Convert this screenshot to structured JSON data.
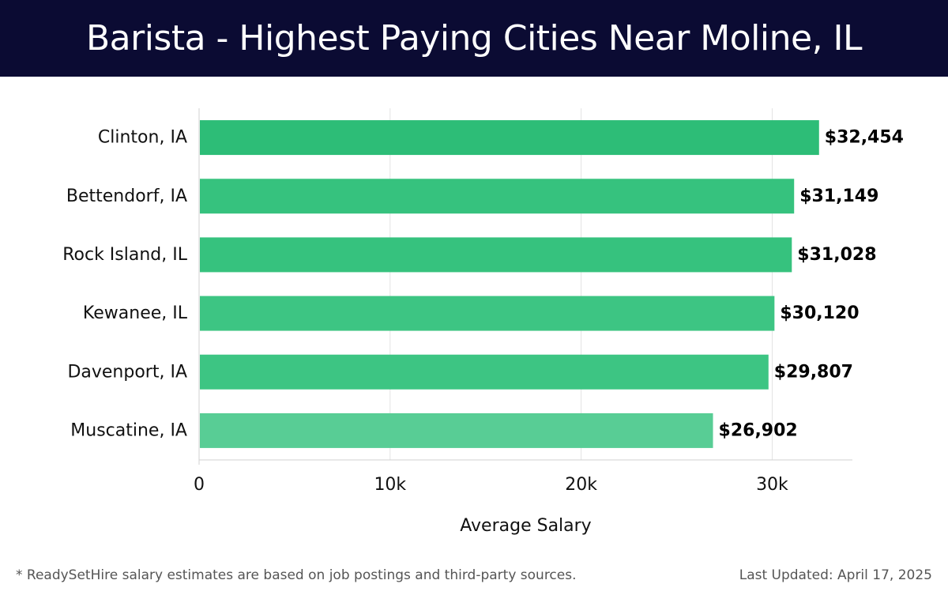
{
  "header": {
    "title": "Barista - Highest Paying Cities Near Moline, IL"
  },
  "chart_data": {
    "type": "bar",
    "orientation": "horizontal",
    "categories": [
      "Clinton, IA",
      "Bettendorf, IA",
      "Rock Island, IL",
      "Kewanee, IL",
      "Davenport, IA",
      "Muscatine, IA"
    ],
    "values": [
      32454,
      31149,
      31028,
      30120,
      29807,
      26902
    ],
    "value_labels": [
      "$32,454",
      "$31,149",
      "$31,028",
      "$30,120",
      "$29,807",
      "$26,902"
    ],
    "bar_colors": [
      "#2dbd77",
      "#36c27e",
      "#36c27e",
      "#3dc583",
      "#3dc583",
      "#58cd95"
    ],
    "xlabel": "Average Salary",
    "xlim": [
      0,
      34200
    ],
    "xticks": [
      0,
      10000,
      20000,
      30000
    ],
    "xtick_labels": [
      "0",
      "10k",
      "20k",
      "30k"
    ],
    "grid": true
  },
  "footer": {
    "note": "* ReadySetHire salary estimates are based on job postings and third-party sources.",
    "updated": "Last Updated: April 17, 2025"
  }
}
